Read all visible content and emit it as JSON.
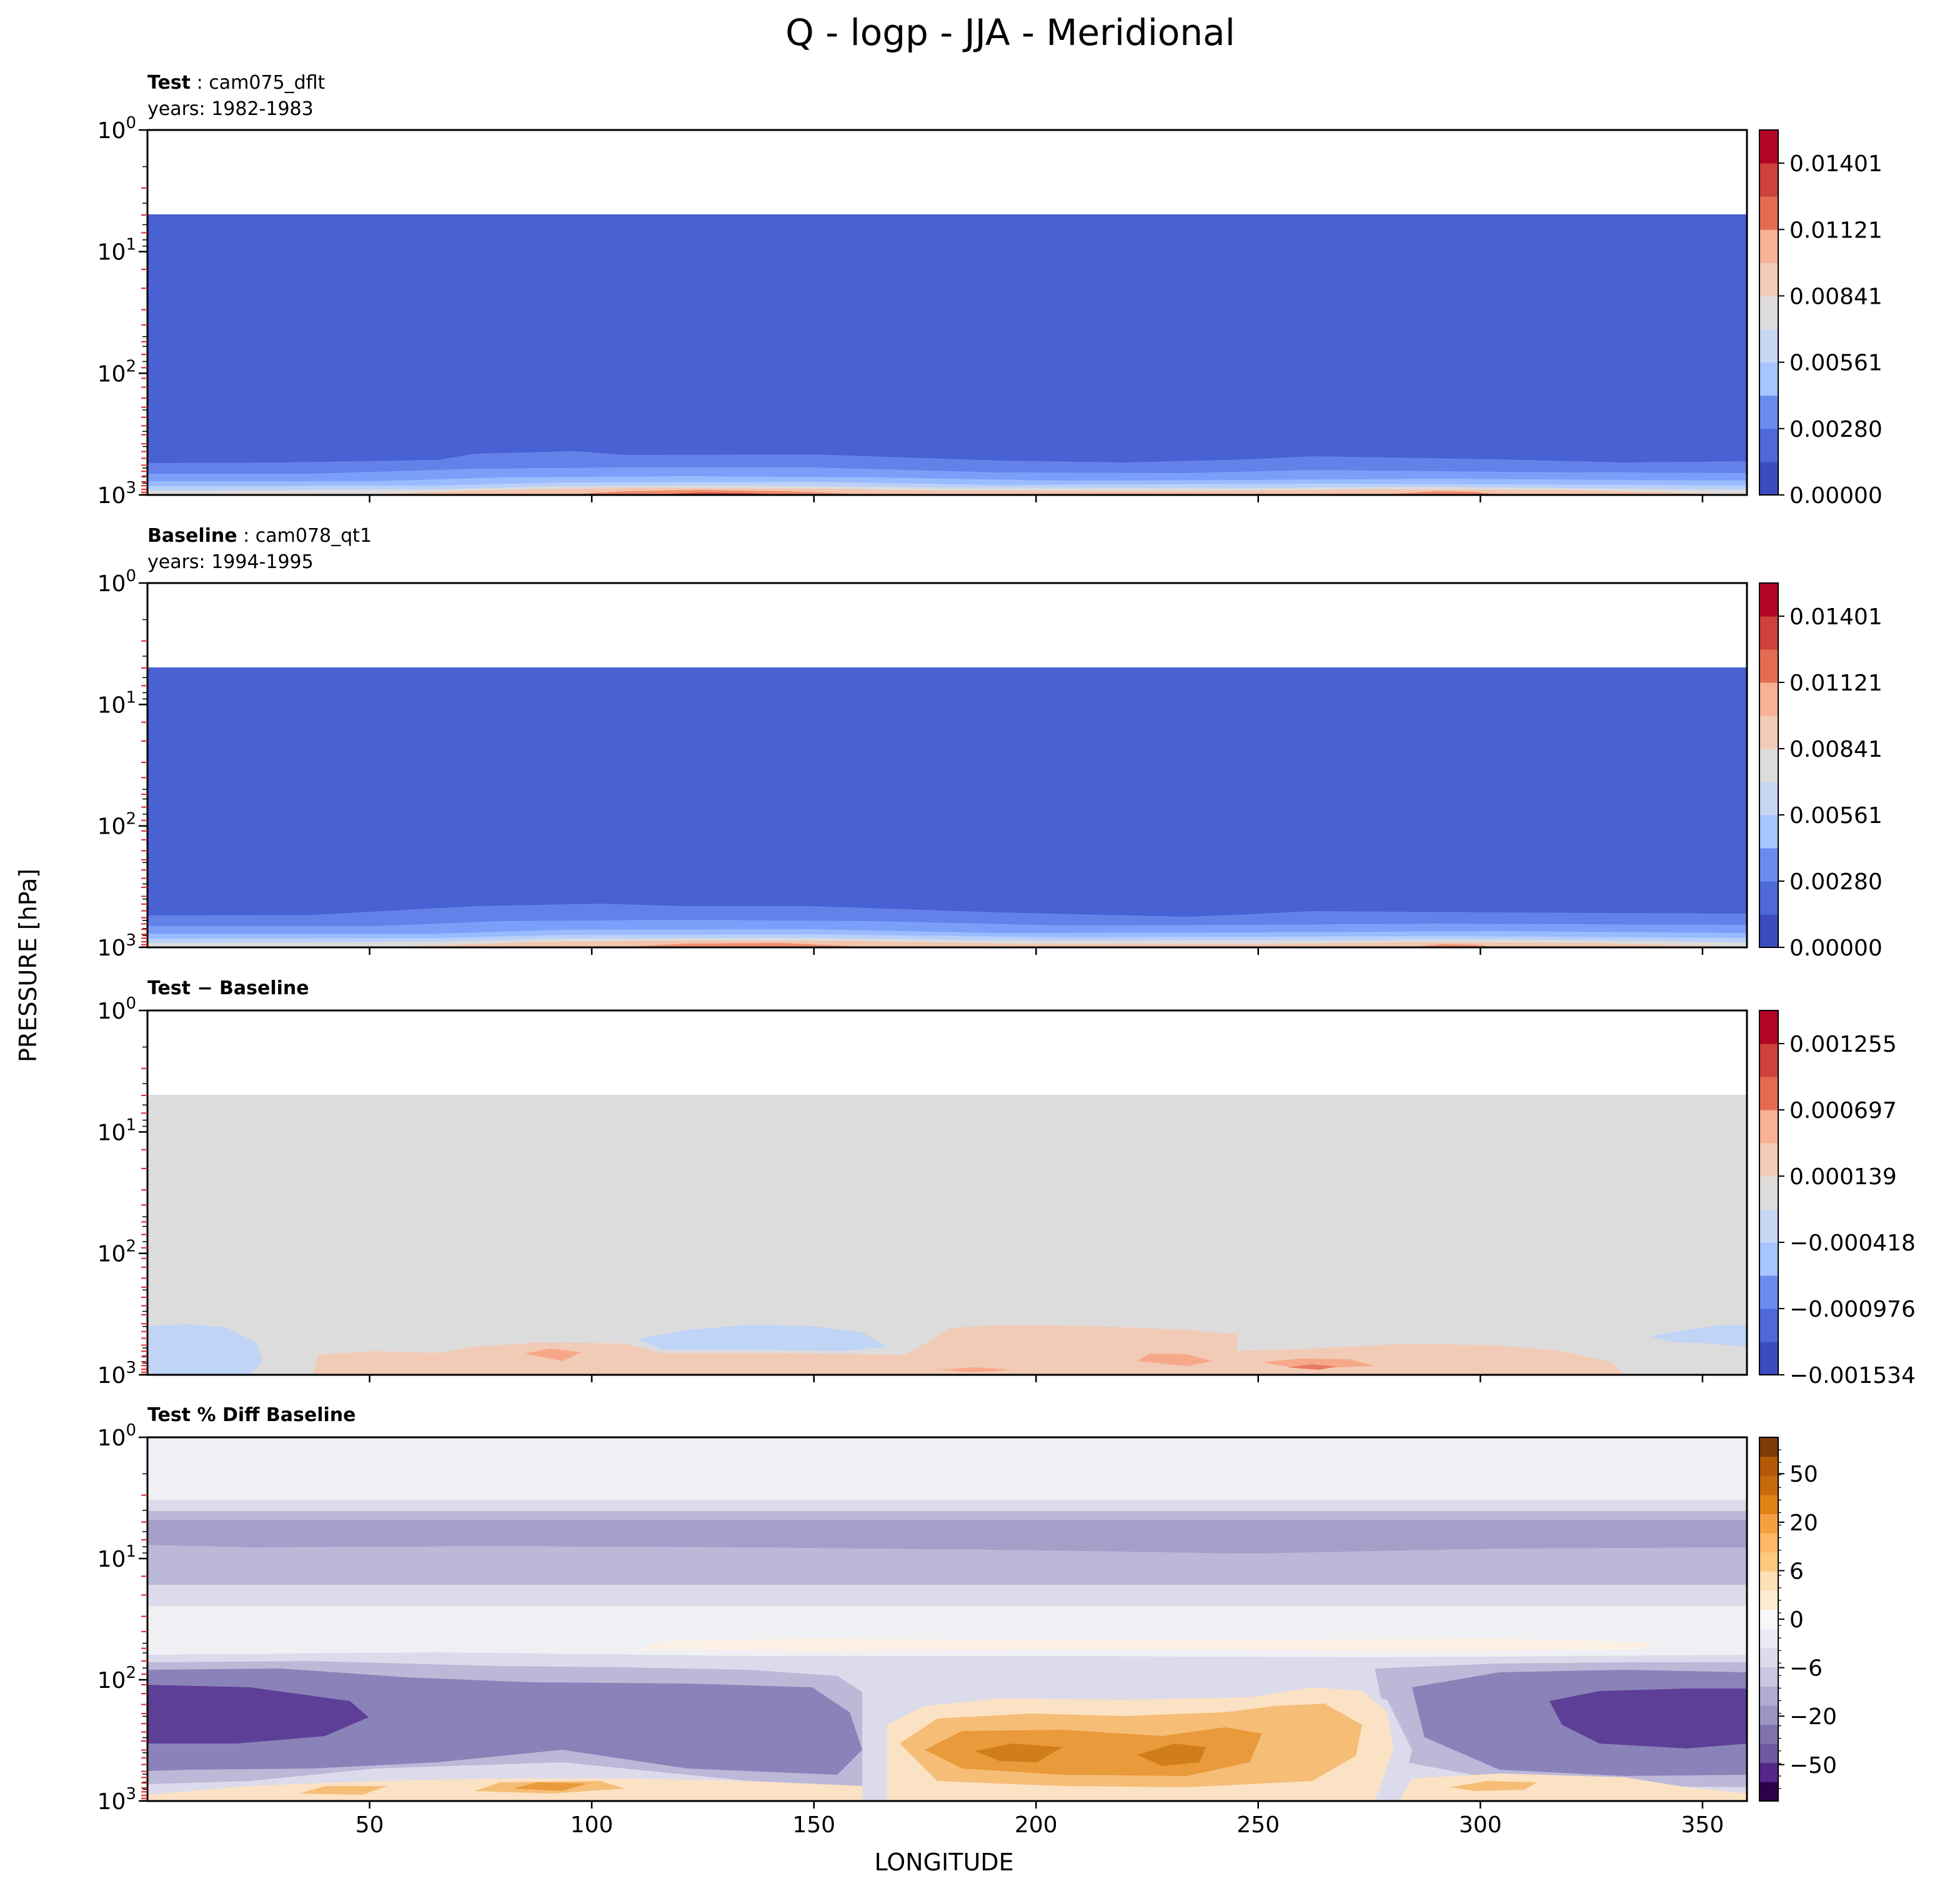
{
  "figure": {
    "title": "Q - logp - JJA - Meridional",
    "xlabel": "LONGITUDE",
    "ylabel": "PRESSURE [hPa]"
  },
  "chart_data": [
    {
      "type": "heatmap",
      "panel": "test",
      "label_bold": "Test",
      "label_sep": " : ",
      "label_rest": "cam075_dflt",
      "subtitle": "years: 1982-1983",
      "x_range": [
        0,
        360
      ],
      "x_ticks": [
        "50",
        "100",
        "150",
        "200",
        "250",
        "300",
        "350"
      ],
      "y_scale": "log",
      "y_range_hpa": [
        1,
        1000
      ],
      "y_ticks": [
        "10^0",
        "10^1",
        "10^2",
        "10^3"
      ],
      "data_top_hpa": 5,
      "colormap": "coolwarm",
      "colorbar_levels": 11,
      "colorbar_ticks": [
        "0.00000",
        "0.00280",
        "0.00561",
        "0.00841",
        "0.01121",
        "0.01401"
      ],
      "description": "Near-uniform low values (~0) above ~550 hPa; values increase sharply toward 1000 hPa reaching ~0.012 near surface around 110-140 and 290 longitude"
    },
    {
      "type": "heatmap",
      "panel": "baseline",
      "label_bold": "Baseline",
      "label_sep": " : ",
      "label_rest": "cam078_qt1",
      "subtitle": "years: 1994-1995",
      "x_range": [
        0,
        360
      ],
      "x_ticks": [
        "50",
        "100",
        "150",
        "200",
        "250",
        "300",
        "350"
      ],
      "y_scale": "log",
      "y_range_hpa": [
        1,
        1000
      ],
      "y_ticks": [
        "10^0",
        "10^1",
        "10^2",
        "10^3"
      ],
      "data_top_hpa": 5,
      "colormap": "coolwarm",
      "colorbar_levels": 11,
      "colorbar_ticks": [
        "0.00000",
        "0.00280",
        "0.00561",
        "0.00841",
        "0.01121",
        "0.01401"
      ],
      "description": "Near-uniform low values above ~550 hPa; maximum near surface"
    },
    {
      "type": "heatmap",
      "panel": "diff",
      "label_bold": "Test − Baseline",
      "label_sep": "",
      "label_rest": "",
      "subtitle": "",
      "x_range": [
        0,
        360
      ],
      "x_ticks": [
        "50",
        "100",
        "150",
        "200",
        "250",
        "300",
        "350"
      ],
      "y_scale": "log",
      "y_range_hpa": [
        1,
        1000
      ],
      "y_ticks": [
        "10^0",
        "10^1",
        "10^2",
        "10^3"
      ],
      "data_top_hpa": 5,
      "colormap": "coolwarm",
      "colorbar_levels": 11,
      "colorbar_ticks": [
        "−0.001534",
        "−0.000976",
        "−0.000418",
        "0.000139",
        "0.000697",
        "0.001255"
      ],
      "description": "Near-zero differences everywhere; small positive anomalies (~0.0004-0.0008) near surface 40-110 and 175-330 longitude; slight negative patches near 120-160 and 340-360"
    },
    {
      "type": "heatmap",
      "panel": "pct",
      "label_bold": "Test % Diff Baseline",
      "label_sep": "",
      "label_rest": "",
      "subtitle": "",
      "x_range": [
        0,
        360
      ],
      "x_ticks": [
        "50",
        "100",
        "150",
        "200",
        "250",
        "300",
        "350"
      ],
      "y_scale": "log",
      "y_range_hpa": [
        1,
        1000
      ],
      "y_ticks": [
        "10^0",
        "10^1",
        "10^2",
        "10^3"
      ],
      "data_top_hpa": 1,
      "colormap": "PuOr_r",
      "colorbar_ticks": [
        "−50",
        "−20",
        "−6",
        "0",
        "6",
        "20",
        "50"
      ],
      "description": "Near 0% above 3 hPa; bands of -6 to -20% between 4 and 30 hPa; slight positive 50-80 hPa; strong negative (-20 to -50%) 150-500 hPa at 0-70 and 310-360 longitude; positive (+6 to +20%) 250-700 hPa between 170 and 280 longitude"
    }
  ]
}
